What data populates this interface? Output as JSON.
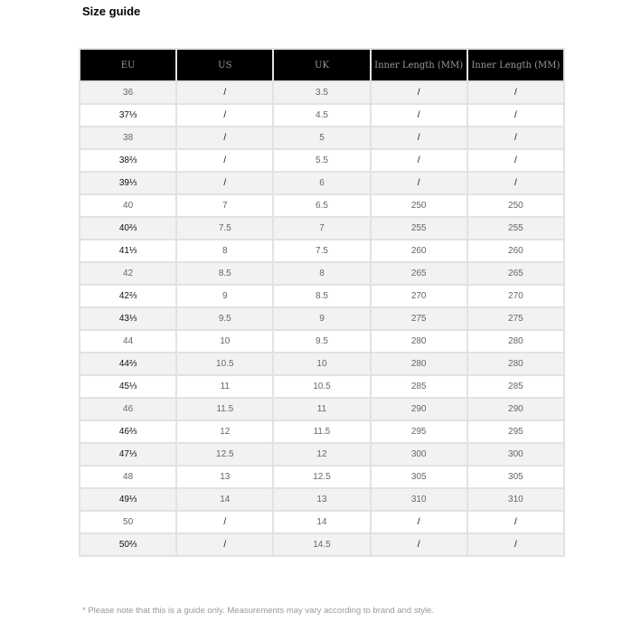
{
  "title": "Size guide",
  "headers": [
    "EU",
    "US",
    "UK",
    "Inner Length (MM)",
    "Inner Length (MM)"
  ],
  "rows": [
    [
      "36",
      "/",
      "3.5",
      "/",
      "/"
    ],
    [
      "37⅓",
      "/",
      "4.5",
      "/",
      "/"
    ],
    [
      "38",
      "/",
      "5",
      "/",
      "/"
    ],
    [
      "38⅔",
      "/",
      "5.5",
      "/",
      "/"
    ],
    [
      "39⅓",
      "/",
      "6",
      "/",
      "/"
    ],
    [
      "40",
      "7",
      "6.5",
      "250",
      "250"
    ],
    [
      "40⅔",
      "7.5",
      "7",
      "255",
      "255"
    ],
    [
      "41⅓",
      "8",
      "7.5",
      "260",
      "260"
    ],
    [
      "42",
      "8.5",
      "8",
      "265",
      "265"
    ],
    [
      "42⅔",
      "9",
      "8.5",
      "270",
      "270"
    ],
    [
      "43⅓",
      "9.5",
      "9",
      "275",
      "275"
    ],
    [
      "44",
      "10",
      "9.5",
      "280",
      "280"
    ],
    [
      "44⅔",
      "10.5",
      "10",
      "280",
      "280"
    ],
    [
      "45⅓",
      "11",
      "10.5",
      "285",
      "285"
    ],
    [
      "46",
      "11.5",
      "11",
      "290",
      "290"
    ],
    [
      "46⅔",
      "12",
      "11.5",
      "295",
      "295"
    ],
    [
      "47⅓",
      "12.5",
      "12",
      "300",
      "300"
    ],
    [
      "48",
      "13",
      "12.5",
      "305",
      "305"
    ],
    [
      "49⅓",
      "14",
      "13",
      "310",
      "310"
    ],
    [
      "50",
      "/",
      "14",
      "/",
      "/"
    ],
    [
      "50⅔",
      "/",
      "14.5",
      "/",
      "/"
    ]
  ],
  "note": "* Please note that this is a guide only. Measurements may vary according to brand and style."
}
